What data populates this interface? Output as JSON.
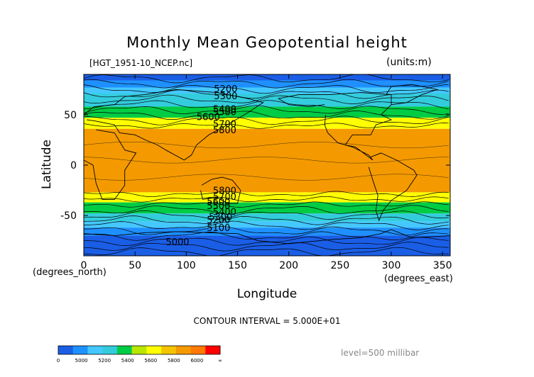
{
  "chart_data": {
    "type": "heatmap",
    "title": "Monthly Mean Geopotential height",
    "file_label": "[HGT_1951-10_NCEP.nc]",
    "units_label": "(units:m)",
    "xlabel": "Longitude",
    "ylabel": "Latitude",
    "x_unit": "(degrees_east)",
    "y_unit": "(degrees_north)",
    "xlim": [
      0,
      357.5
    ],
    "ylim": [
      -90,
      90
    ],
    "xticks": [
      0,
      50,
      100,
      150,
      200,
      250,
      300,
      350
    ],
    "yticks": [
      -50,
      0,
      50
    ],
    "contour_interval_text": "CONTOUR INTERVAL = 5.000E+01",
    "level_text": "level=500 millibar",
    "contour_labels": [
      {
        "value": "5200",
        "lon": 127,
        "lat": 76
      },
      {
        "value": "5300",
        "lon": 127,
        "lat": 69
      },
      {
        "value": "5400",
        "lon": 126,
        "lat": 56
      },
      {
        "value": "5500",
        "lon": 126,
        "lat": 53
      },
      {
        "value": "5600",
        "lon": 110,
        "lat": 48
      },
      {
        "value": "5700",
        "lon": 126,
        "lat": 41
      },
      {
        "value": "5800",
        "lon": 126,
        "lat": 35
      },
      {
        "value": "5800",
        "lon": 126,
        "lat": -25
      },
      {
        "value": "5700",
        "lon": 126,
        "lat": -31
      },
      {
        "value": "5600",
        "lon": 120,
        "lat": -36
      },
      {
        "value": "5500",
        "lon": 120,
        "lat": -40
      },
      {
        "value": "5400",
        "lon": 126,
        "lat": -46
      },
      {
        "value": "5300",
        "lon": 122,
        "lat": -51
      },
      {
        "value": "5200",
        "lon": 120,
        "lat": -54
      },
      {
        "value": "5100",
        "lon": 120,
        "lat": -62
      },
      {
        "value": "5000",
        "lon": 80,
        "lat": -76
      }
    ],
    "bands": [
      {
        "lat_top": 90,
        "lat_bottom": 84,
        "value": 5100
      },
      {
        "lat_top": 84,
        "lat_bottom": 77,
        "value": 5250
      },
      {
        "lat_top": 77,
        "lat_bottom": 71,
        "value": 5350
      },
      {
        "lat_top": 71,
        "lat_bottom": 58,
        "value": 5450
      },
      {
        "lat_top": 58,
        "lat_bottom": 47,
        "value": 5550
      },
      {
        "lat_top": 47,
        "lat_bottom": 36,
        "value": 5700
      },
      {
        "lat_top": 36,
        "lat_bottom": -27,
        "value": 5850
      },
      {
        "lat_top": -27,
        "lat_bottom": -37,
        "value": 5700
      },
      {
        "lat_top": -37,
        "lat_bottom": -48,
        "value": 5550
      },
      {
        "lat_top": -48,
        "lat_bottom": -56,
        "value": 5450
      },
      {
        "lat_top": -56,
        "lat_bottom": -62,
        "value": 5350
      },
      {
        "lat_top": -62,
        "lat_bottom": -70,
        "value": 5250
      },
      {
        "lat_top": -70,
        "lat_bottom": -90,
        "value": 5100
      }
    ],
    "colorbar": {
      "tick_labels": [
        "0",
        "5000",
        "5200",
        "5400",
        "5600",
        "5800",
        "6000",
        "∞"
      ],
      "colors": [
        "#1a5ee6",
        "#1e90ff",
        "#44c8ff",
        "#33ccdd",
        "#00cc44",
        "#b8e600",
        "#ffff00",
        "#f5c400",
        "#f49a00",
        "#ff7a00",
        "#ff0000"
      ]
    }
  },
  "colors": {
    "band_5100": "#1a5ee6",
    "band_5250": "#1e90ff",
    "band_5350": "#44c8ff",
    "band_5450": "#33ccdd",
    "band_5550": "#00cc44",
    "band_5700": "#ffff00",
    "band_5850": "#f49a00"
  }
}
